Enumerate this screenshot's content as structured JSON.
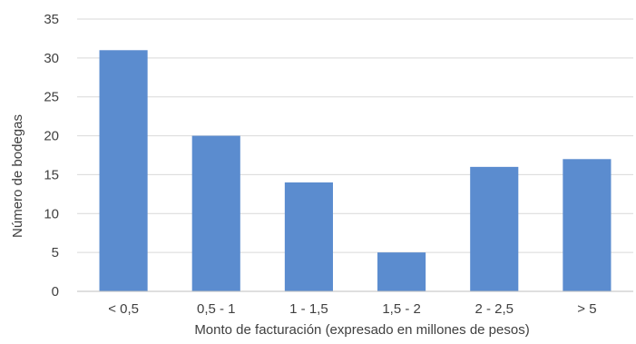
{
  "chart_data": {
    "type": "bar",
    "categories": [
      "< 0,5",
      "0,5 - 1",
      "1 - 1,5",
      "1,5 - 2",
      "2 - 2,5",
      "> 5"
    ],
    "values": [
      31,
      20,
      14,
      5,
      16,
      17
    ],
    "title": "",
    "xlabel": "Monto de facturación (expresado en millones de pesos)",
    "ylabel": "Número de bodegas",
    "ylim": [
      0,
      35
    ],
    "yticks": [
      0,
      5,
      10,
      15,
      20,
      25,
      30,
      35
    ],
    "grid": true,
    "legend": "none",
    "colors": {
      "bar": "#5b8ccf",
      "grid": "#d9d9d9",
      "axis": "#bfbfbf",
      "text": "#404040"
    }
  }
}
